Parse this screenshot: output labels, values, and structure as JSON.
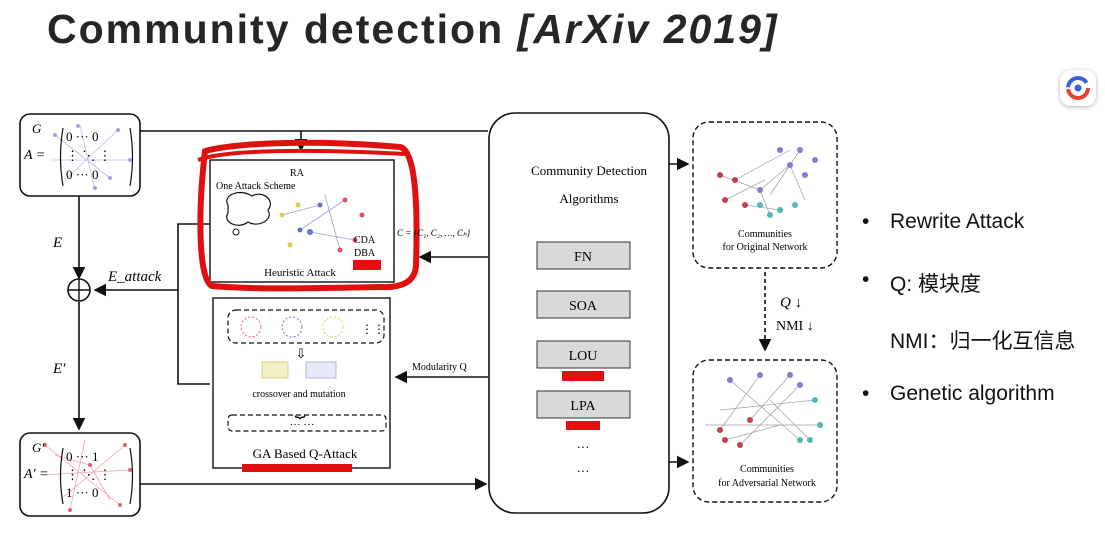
{
  "slide": {
    "title": "Community detection",
    "venue": "[ArXiv 2019]"
  },
  "diagram": {
    "input_graph": {
      "graph_label": "G",
      "matrix_label": "A ="
    },
    "output_graph": {
      "graph_label": "G′",
      "matrix_label": "A′ ="
    },
    "edge_label_e": "E",
    "edge_label_e_attack": "E_attack",
    "edge_label_e_prime": "E′",
    "heuristic_panel": {
      "ra_label": "RA",
      "scheme_label": "One Attack Scheme",
      "cda_label": "CDA",
      "dba_label": "DBA",
      "title": "Heuristic Attack"
    },
    "ga_panel": {
      "crossover_label": "crossover and mutation",
      "title": "GA Based Q-Attack"
    },
    "community_set_label": "C = {C₁, C₂, …, Cₕ}",
    "modularity_label": "Modularity Q",
    "algorithms_box": {
      "title_line1": "Community Detection",
      "title_line2": "Algorithms",
      "items": [
        "FN",
        "SOA",
        "LOU",
        "LPA"
      ],
      "ellipsis": "…"
    },
    "original_result": {
      "line1": "Communities",
      "line2": "for Original Network"
    },
    "adversarial_result": {
      "line1": "Communities",
      "line2": "for Adversarial Network"
    },
    "metric_q": "Q ↓",
    "metric_nmi": "NMI ↓"
  },
  "bullets": [
    {
      "marker": "•",
      "text": "Rewrite Attack"
    },
    {
      "marker": "•",
      "text": "Q: 模块度"
    },
    {
      "marker": "",
      "text": "NMI：归一化互信息"
    },
    {
      "marker": "•",
      "text": "Genetic algorithm"
    }
  ],
  "colors": {
    "highlight": "#e01010"
  },
  "icons": [
    "app-logo-icon"
  ]
}
